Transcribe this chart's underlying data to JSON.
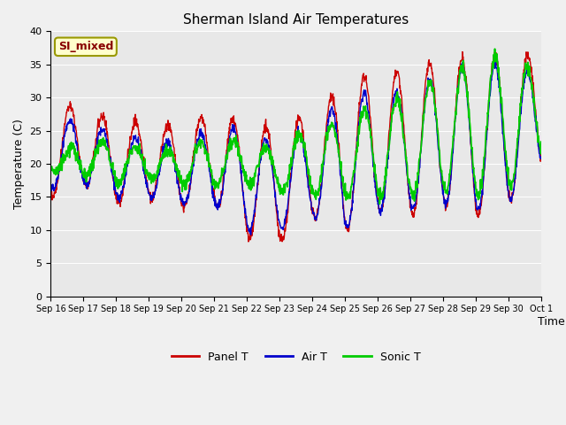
{
  "title": "Sherman Island Air Temperatures",
  "xlabel": "Time",
  "ylabel": "Temperature (C)",
  "ylim": [
    0,
    40
  ],
  "yticks": [
    0,
    5,
    10,
    15,
    20,
    25,
    30,
    35,
    40
  ],
  "plot_bg": "#e8e8e8",
  "fig_bg": "#f0f0f0",
  "panel_color": "#cc0000",
  "air_color": "#0000cc",
  "sonic_color": "#00cc00",
  "annotation_text": "SI_mixed",
  "annotation_bg": "#ffffcc",
  "annotation_border": "#999900",
  "annotation_text_color": "#880000",
  "legend_labels": [
    "Panel T",
    "Air T",
    "Sonic T"
  ],
  "x_tick_labels": [
    "Sep 16",
    "Sep 17",
    "Sep 18",
    "Sep 19",
    "Sep 20",
    "Sep 21",
    "Sep 22",
    "Sep 23",
    "Sep 24",
    "Sep 25",
    "Sep 26",
    "Sep 27",
    "Sep 28",
    "Sep 29",
    "Sep 30",
    "Oct 1"
  ],
  "n_days": 15,
  "n_points": 1440,
  "panel_peaks": [
    28.5,
    29.0,
    26.0,
    26.5,
    25.5,
    28.0,
    26.0,
    25.5,
    28.0,
    32.0,
    34.0,
    34.0,
    36.0,
    36.0,
    37.0,
    36.0
  ],
  "panel_troughs": [
    15.0,
    17.0,
    14.0,
    15.0,
    13.5,
    14.0,
    9.0,
    8.0,
    12.0,
    10.0,
    13.0,
    12.0,
    14.0,
    12.0,
    14.0,
    20.0
  ],
  "air_peaks": [
    26.0,
    27.0,
    24.0,
    24.0,
    23.0,
    26.0,
    25.0,
    23.0,
    26.0,
    30.0,
    31.0,
    31.0,
    34.0,
    35.0,
    35.0,
    33.0
  ],
  "air_troughs": [
    16.0,
    17.0,
    15.0,
    15.0,
    14.0,
    14.0,
    10.0,
    10.0,
    12.0,
    10.0,
    13.0,
    13.0,
    14.0,
    13.0,
    14.0,
    20.0
  ],
  "sonic_peaks": [
    20.0,
    24.0,
    23.0,
    22.0,
    22.0,
    24.0,
    23.0,
    22.0,
    26.0,
    26.0,
    30.0,
    30.0,
    34.0,
    35.0,
    37.0,
    33.0
  ],
  "sonic_troughs": [
    19.0,
    18.0,
    17.0,
    18.0,
    17.0,
    17.0,
    17.0,
    16.0,
    15.0,
    15.0,
    15.0,
    15.0,
    16.0,
    15.0,
    16.0,
    21.0
  ]
}
